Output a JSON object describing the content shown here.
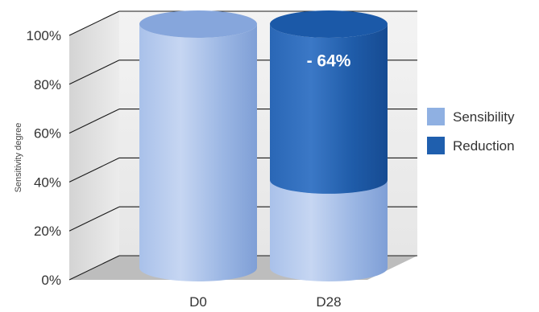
{
  "chart_data": {
    "type": "bar",
    "subtype": "stacked-3d-cylinder",
    "categories": [
      "D0",
      "D28"
    ],
    "series": [
      {
        "name": "Sensibility",
        "values": [
          100,
          36
        ],
        "color": "#8fb0e2"
      },
      {
        "name": "Reduction",
        "values": [
          0,
          64
        ],
        "color": "#1f5fae"
      }
    ],
    "ylabel": "Sensitivity degree",
    "xlabel": "",
    "ylim": [
      0,
      100
    ],
    "yticks": [
      0,
      20,
      40,
      60,
      80,
      100
    ],
    "ytick_labels": [
      "0%",
      "20%",
      "40%",
      "60%",
      "80%",
      "100%"
    ],
    "grid": true,
    "legend_position": "right",
    "annotation": {
      "category": "D28",
      "text": "- 64%"
    }
  }
}
